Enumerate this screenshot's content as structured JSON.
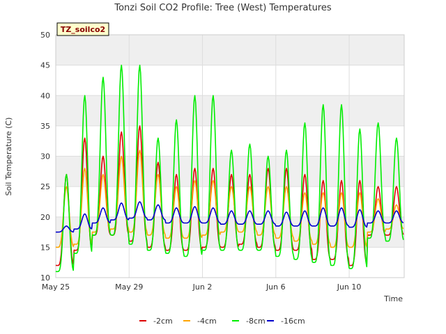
{
  "chart_data": {
    "type": "line",
    "title": "Tonzi Soil CO2 Profile: Tree (West) Temperatures",
    "xlabel": "Time",
    "ylabel": "Soil Temperature (C)",
    "ylim": [
      10,
      50
    ],
    "yticks": [
      10,
      15,
      20,
      25,
      30,
      35,
      40,
      45,
      50
    ],
    "xlim": [
      "2024-05-25",
      "2024-06-13"
    ],
    "xticks": [
      "May 25",
      "May 29",
      "Jun 2",
      "Jun 6",
      "Jun 10"
    ],
    "xtick_dates": [
      "2024-05-25",
      "2024-05-29",
      "2024-06-02",
      "2024-06-06",
      "2024-06-10"
    ],
    "site_label": "TZ_soilco2",
    "grid": true,
    "legend_position": "bottom",
    "colors": {
      "band": "#efefef",
      "grid": "#dddddd"
    },
    "x": [
      "2024-05-25",
      "2024-05-26",
      "2024-05-27",
      "2024-05-28",
      "2024-05-29",
      "2024-05-30",
      "2024-05-31",
      "2024-06-01",
      "2024-06-02",
      "2024-06-03",
      "2024-06-04",
      "2024-06-05",
      "2024-06-06",
      "2024-06-07",
      "2024-06-08",
      "2024-06-09",
      "2024-06-10",
      "2024-06-11",
      "2024-06-12"
    ],
    "series": [
      {
        "name": "-2cm",
        "color": "#dd0000",
        "daily_max": [
          27,
          33,
          30,
          34,
          35,
          29,
          27,
          28,
          28,
          27,
          27,
          28,
          28,
          27,
          26,
          26,
          26,
          25,
          25
        ],
        "daily_min": [
          12,
          14.5,
          17,
          17,
          16,
          15,
          14.5,
          14.5,
          15,
          15,
          15.5,
          15,
          14.5,
          14.5,
          13,
          13,
          12,
          17,
          17
        ]
      },
      {
        "name": "-4cm",
        "color": "#ffa500",
        "daily_max": [
          25,
          28,
          27,
          30,
          31,
          27,
          25,
          26,
          26,
          25,
          25,
          25,
          25,
          24,
          24,
          24,
          24,
          23,
          22
        ],
        "daily_min": [
          15,
          15.5,
          17.5,
          18,
          17.5,
          17,
          16.5,
          16.5,
          17,
          17.5,
          17.5,
          17,
          16.5,
          16,
          15.5,
          15,
          15,
          17.5,
          18
        ]
      },
      {
        "name": "-8cm",
        "color": "#00ee00",
        "daily_max": [
          27,
          40,
          43,
          45,
          45,
          33,
          36,
          40,
          40,
          31,
          32,
          30,
          31,
          35.5,
          38.5,
          38.5,
          34.5,
          35.5,
          33
        ],
        "daily_min": [
          11,
          14,
          17,
          17,
          15.5,
          14.5,
          14,
          13.5,
          14.5,
          14.5,
          14.5,
          14.5,
          13.5,
          13,
          12.5,
          12,
          11.5,
          16.5,
          16
        ]
      },
      {
        "name": "-16cm",
        "color": "#0000cc",
        "daily_max": [
          18.5,
          20.5,
          21.5,
          22.3,
          22.5,
          22,
          21.5,
          21.7,
          21.5,
          21,
          21,
          21,
          20.8,
          21,
          21.5,
          21.5,
          21.2,
          21,
          21
        ],
        "daily_min": [
          17.5,
          18,
          19,
          19.5,
          19.8,
          19.5,
          19,
          19,
          19,
          18.8,
          18.8,
          18.8,
          18.5,
          18.5,
          18.5,
          18.5,
          18.3,
          19,
          19
        ]
      }
    ]
  }
}
